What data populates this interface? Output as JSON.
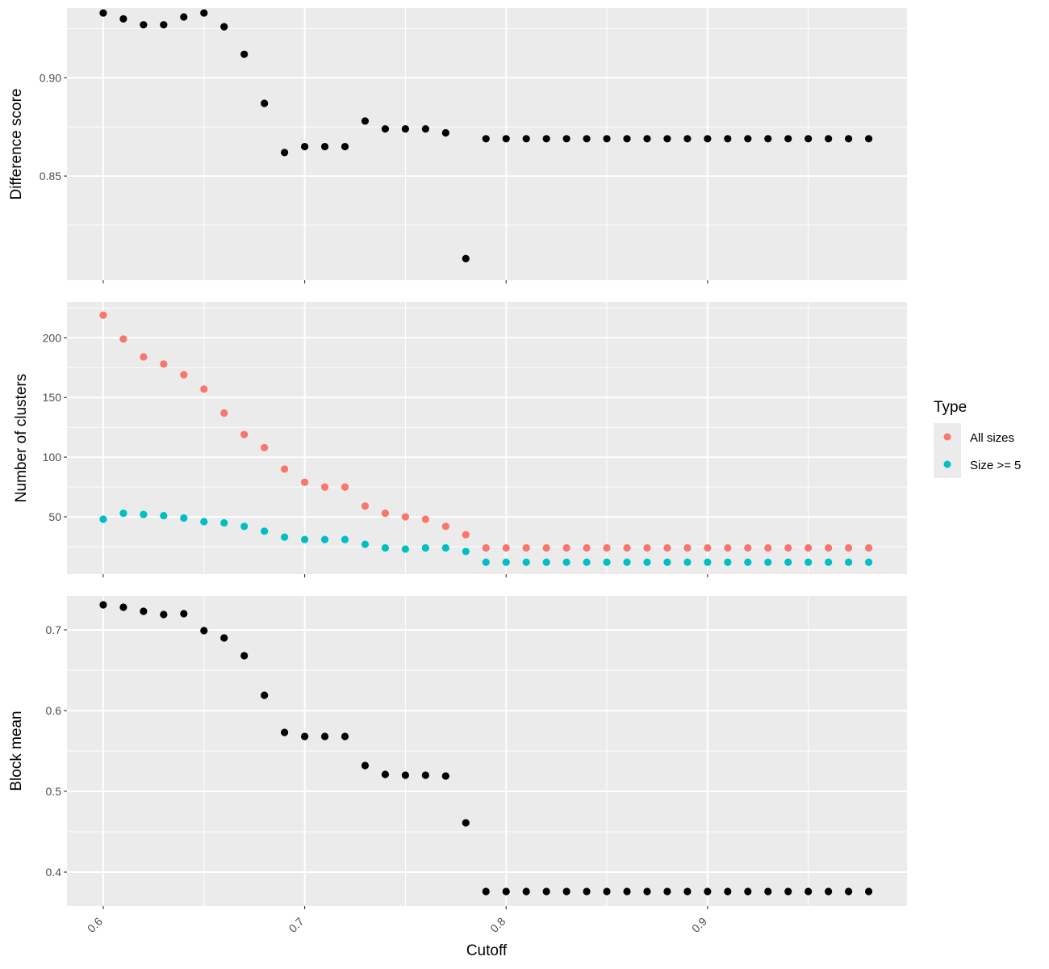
{
  "chart_data": [
    {
      "type": "scatter",
      "ylabel": "Difference score",
      "xlim": [
        0.582,
        0.999
      ],
      "ylim": [
        0.797,
        0.9355
      ],
      "y_ticks": [
        0.85,
        0.9
      ],
      "y_tick_labels": [
        "0.85",
        "0.90"
      ],
      "grid": true,
      "series": [
        {
          "color": "#000000",
          "x": [
            0.6,
            0.61,
            0.62,
            0.63,
            0.64,
            0.65,
            0.66,
            0.67,
            0.68,
            0.69,
            0.7,
            0.71,
            0.72,
            0.73,
            0.74,
            0.75,
            0.76,
            0.77,
            0.78,
            0.79,
            0.8,
            0.81,
            0.82,
            0.83,
            0.84,
            0.85,
            0.86,
            0.87,
            0.88,
            0.89,
            0.9,
            0.91,
            0.92,
            0.93,
            0.94,
            0.95,
            0.96,
            0.97,
            0.98
          ],
          "y": [
            0.933,
            0.93,
            0.927,
            0.927,
            0.931,
            0.933,
            0.926,
            0.912,
            0.887,
            0.862,
            0.865,
            0.865,
            0.865,
            0.878,
            0.874,
            0.874,
            0.874,
            0.872,
            0.808,
            0.869,
            0.869,
            0.869,
            0.869,
            0.869,
            0.869,
            0.869,
            0.869,
            0.869,
            0.869,
            0.869,
            0.869,
            0.869,
            0.869,
            0.869,
            0.869,
            0.869,
            0.869,
            0.869,
            0.869
          ]
        }
      ]
    },
    {
      "type": "scatter",
      "ylabel": "Number of clusters",
      "xlim": [
        0.582,
        0.999
      ],
      "ylim": [
        2,
        230
      ],
      "y_ticks": [
        50,
        100,
        150,
        200
      ],
      "y_tick_labels": [
        "50",
        "100",
        "150",
        "200"
      ],
      "grid": true,
      "legend_title": "Type",
      "legend_position": "right",
      "series": [
        {
          "name": "All sizes",
          "color": "#F8766D",
          "x": [
            0.6,
            0.61,
            0.62,
            0.63,
            0.64,
            0.65,
            0.66,
            0.67,
            0.68,
            0.69,
            0.7,
            0.71,
            0.72,
            0.73,
            0.74,
            0.75,
            0.76,
            0.77,
            0.78,
            0.79,
            0.8,
            0.81,
            0.82,
            0.83,
            0.84,
            0.85,
            0.86,
            0.87,
            0.88,
            0.89,
            0.9,
            0.91,
            0.92,
            0.93,
            0.94,
            0.95,
            0.96,
            0.97,
            0.98
          ],
          "y": [
            219,
            199,
            184,
            178,
            169,
            157,
            137,
            119,
            108,
            90,
            79,
            75,
            75,
            59,
            53,
            50,
            48,
            42,
            35,
            24,
            24,
            24,
            24,
            24,
            24,
            24,
            24,
            24,
            24,
            24,
            24,
            24,
            24,
            24,
            24,
            24,
            24,
            24,
            24
          ]
        },
        {
          "name": "Size >= 5",
          "color": "#00BFC4",
          "x": [
            0.6,
            0.61,
            0.62,
            0.63,
            0.64,
            0.65,
            0.66,
            0.67,
            0.68,
            0.69,
            0.7,
            0.71,
            0.72,
            0.73,
            0.74,
            0.75,
            0.76,
            0.77,
            0.78,
            0.79,
            0.8,
            0.81,
            0.82,
            0.83,
            0.84,
            0.85,
            0.86,
            0.87,
            0.88,
            0.89,
            0.9,
            0.91,
            0.92,
            0.93,
            0.94,
            0.95,
            0.96,
            0.97,
            0.98
          ],
          "y": [
            48,
            53,
            52,
            51,
            49,
            46,
            45,
            42,
            38,
            33,
            31,
            31,
            31,
            27,
            24,
            23,
            24,
            24,
            21,
            12,
            12,
            12,
            12,
            12,
            12,
            12,
            12,
            12,
            12,
            12,
            12,
            12,
            12,
            12,
            12,
            12,
            12,
            12,
            12
          ]
        }
      ]
    },
    {
      "type": "scatter",
      "ylabel": "Block mean",
      "xlabel": "Cutoff",
      "xlim": [
        0.582,
        0.999
      ],
      "ylim": [
        0.358,
        0.742
      ],
      "y_ticks": [
        0.4,
        0.5,
        0.6,
        0.7
      ],
      "y_tick_labels": [
        "0.4",
        "0.5",
        "0.6",
        "0.7"
      ],
      "x_ticks": [
        0.6,
        0.7,
        0.8,
        0.9
      ],
      "x_tick_labels": [
        "0.6",
        "0.7",
        "0.8",
        "0.9"
      ],
      "grid": true,
      "series": [
        {
          "color": "#000000",
          "x": [
            0.6,
            0.61,
            0.62,
            0.63,
            0.64,
            0.65,
            0.66,
            0.67,
            0.68,
            0.69,
            0.7,
            0.71,
            0.72,
            0.73,
            0.74,
            0.75,
            0.76,
            0.77,
            0.78,
            0.79,
            0.8,
            0.81,
            0.82,
            0.83,
            0.84,
            0.85,
            0.86,
            0.87,
            0.88,
            0.89,
            0.9,
            0.91,
            0.92,
            0.93,
            0.94,
            0.95,
            0.96,
            0.97,
            0.98
          ],
          "y": [
            0.731,
            0.728,
            0.723,
            0.719,
            0.72,
            0.699,
            0.69,
            0.668,
            0.619,
            0.573,
            0.568,
            0.568,
            0.568,
            0.532,
            0.521,
            0.52,
            0.52,
            0.519,
            0.461,
            0.376,
            0.376,
            0.376,
            0.376,
            0.376,
            0.376,
            0.376,
            0.376,
            0.376,
            0.376,
            0.376,
            0.376,
            0.376,
            0.376,
            0.376,
            0.376,
            0.376,
            0.376,
            0.376,
            0.376
          ]
        }
      ]
    }
  ],
  "legend": {
    "title": "Type",
    "items": [
      {
        "label": "All sizes",
        "color": "#F8766D"
      },
      {
        "label": "Size >= 5",
        "color": "#00BFC4"
      }
    ]
  },
  "xlabel": "Cutoff",
  "colors": {
    "panel_background": "#EBEBEB",
    "grid_major": "#FFFFFF",
    "tick_text": "#4D4D4D"
  }
}
